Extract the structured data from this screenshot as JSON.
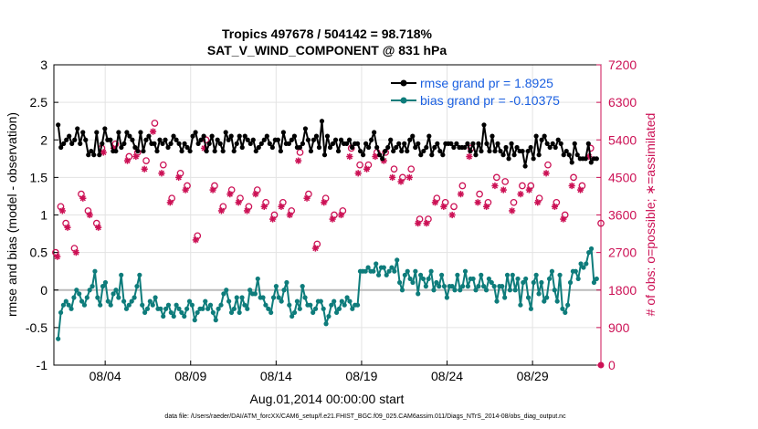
{
  "chart_data": {
    "type": "line",
    "title_line1": "Tropics 497678 / 504142 = 98.718%",
    "title_line2": "SAT_V_WIND_COMPONENT @ 831 hPa",
    "xlabel": "Aug.01,2014 00:00:00 start",
    "ylabel_left": "rmse and bias (model - observation)",
    "ylabel_right": "# of obs: o=possible; ∗=assimilated",
    "footer": "data file: /Users/raeder/DAI/ATM_forcXX/CAM6_setup/f.e21.FHIST_BGC.f09_025.CAM6assim.011/Diags_NTrS_2014-08/obs_diag_output.nc",
    "x_ticks": [
      "08/04",
      "08/09",
      "08/14",
      "08/19",
      "08/24",
      "08/29"
    ],
    "x_tick_days": [
      4,
      9,
      14,
      19,
      24,
      29
    ],
    "xlim": [
      1.0,
      33.0
    ],
    "ylim_left": [
      -1,
      3
    ],
    "y_ticks_left": [
      "-1",
      "-0.5",
      "0",
      "0.5",
      "1",
      "1.5",
      "2",
      "2.5",
      "3"
    ],
    "ylim_right": [
      0,
      7200
    ],
    "y_ticks_right": [
      "0",
      "900",
      "1800",
      "2700",
      "3600",
      "4500",
      "5400",
      "6300",
      "7200"
    ],
    "legend": {
      "position": "top-right",
      "rmse_label": "rmse grand pr = 1.8925",
      "bias_label": "bias grand pr = -0.10375"
    },
    "colors": {
      "rmse": "#000000",
      "bias": "#0e7c7b",
      "counts": "#cc1155",
      "grid": "#e3e3e3",
      "zero_line": "#bbbbbb",
      "legend_text": "#1a5fe0"
    },
    "series": {
      "rmse": [
        2.2,
        1.9,
        1.95,
        2.0,
        2.05,
        1.95,
        2.0,
        2.15,
        1.95,
        2.1,
        2.0,
        1.8,
        1.85,
        1.8,
        2.1,
        1.8,
        1.95,
        2.15,
        2.0,
        2.0,
        1.85,
        1.85,
        2.1,
        1.9,
        1.95,
        2.1,
        2.05,
        2.0,
        1.9,
        1.85,
        2.1,
        1.85,
        2.0,
        2.05,
        1.95,
        1.95,
        1.85,
        2.0,
        1.95,
        2.0,
        1.9,
        1.95,
        2.05,
        2.0,
        1.95,
        1.85,
        1.95,
        1.9,
        1.85,
        2.05,
        2.1,
        1.95,
        2.0,
        2.05,
        1.85,
        1.95,
        2.05,
        1.85,
        2.0,
        1.95,
        1.85,
        2.1,
        2.0,
        2.05,
        1.85,
        1.95,
        2.05,
        1.9,
        2.05,
        2.0,
        1.95,
        2.0,
        1.85,
        1.9,
        1.95,
        2.0,
        2.05,
        1.95,
        1.9,
        2.0,
        2.0,
        1.85,
        2.1,
        1.95,
        1.95,
        2.0,
        2.05,
        1.9,
        1.9,
        1.95,
        2.15,
        2.0,
        1.85,
        2.0,
        2.05,
        1.9,
        2.25,
        1.8,
        2.05,
        1.9,
        1.95,
        2.0,
        1.85,
        2.0,
        1.95,
        1.95,
        2.0,
        1.9,
        1.95,
        1.95,
        1.85,
        1.8,
        1.95,
        1.9,
        2.0,
        2.1,
        1.9,
        1.8,
        1.75,
        1.85,
        1.9,
        2.0,
        1.85,
        1.9,
        1.95,
        1.85,
        1.95,
        1.85,
        2.0,
        2.05,
        1.9,
        1.95,
        1.8,
        1.85,
        1.9,
        2.05,
        1.8,
        1.9,
        1.95,
        1.85,
        1.8,
        1.95,
        1.95,
        1.95,
        1.9,
        1.95,
        1.9,
        1.9,
        1.9,
        1.95,
        1.85,
        1.95,
        1.8,
        1.95,
        1.85,
        2.2,
        1.95,
        1.85,
        2.05,
        1.85,
        1.95,
        1.85,
        1.8,
        1.9,
        1.75,
        1.95,
        1.8,
        1.9,
        1.85,
        1.85,
        1.65,
        1.85,
        1.9,
        1.75,
        2.05,
        1.8,
        2.0,
        2.05,
        1.95,
        1.9,
        1.95,
        1.9,
        2.0,
        1.95,
        1.8,
        1.85,
        1.8,
        1.7,
        1.95,
        1.8,
        1.75,
        1.75,
        1.75,
        1.95,
        1.7,
        1.75,
        1.75
      ],
      "bias": [
        -0.65,
        -0.3,
        -0.2,
        -0.15,
        -0.2,
        -0.25,
        -0.1,
        0.0,
        -0.05,
        -0.15,
        -0.2,
        -0.1,
        0.0,
        0.05,
        0.25,
        -0.1,
        -0.2,
        0.05,
        0.1,
        -0.15,
        -0.2,
        -0.05,
        0.0,
        -0.1,
        0.2,
        -0.15,
        -0.25,
        -0.2,
        -0.15,
        -0.1,
        0.05,
        0.2,
        -0.2,
        -0.3,
        -0.25,
        -0.15,
        -0.2,
        -0.1,
        -0.25,
        -0.25,
        -0.35,
        -0.25,
        -0.2,
        -0.3,
        -0.35,
        -0.2,
        -0.25,
        -0.3,
        -0.35,
        -0.25,
        -0.15,
        -0.2,
        -0.4,
        -0.3,
        -0.25,
        -0.25,
        -0.15,
        -0.25,
        -0.2,
        -0.3,
        -0.4,
        -0.25,
        -0.2,
        -0.05,
        0.0,
        -0.15,
        -0.3,
        -0.25,
        -0.1,
        -0.3,
        -0.1,
        -0.2,
        -0.25,
        0.0,
        -0.05,
        -0.05,
        0.15,
        -0.1,
        -0.1,
        -0.2,
        -0.25,
        -0.3,
        -0.1,
        0.05,
        -0.1,
        -0.15,
        0.0,
        0.1,
        -0.2,
        -0.35,
        -0.3,
        -0.15,
        -0.25,
        0.05,
        -0.1,
        -0.2,
        -0.2,
        -0.3,
        -0.25,
        -0.15,
        -0.15,
        -0.25,
        -0.45,
        -0.35,
        -0.2,
        -0.15,
        -0.3,
        -0.25,
        -0.15,
        -0.2,
        -0.1,
        -0.15,
        -0.25,
        -0.2,
        -0.2,
        0.25,
        0.25,
        0.25,
        0.3,
        0.25,
        0.25,
        0.35,
        0.2,
        0.3,
        0.3,
        0.2,
        0.25,
        0.3,
        0.25,
        0.4,
        0.1,
        0.0,
        0.2,
        0.25,
        0.15,
        0.1,
        0.25,
        -0.05,
        0.2,
        0.15,
        0.05,
        0.15,
        0.25,
        0.0,
        0.1,
        0.05,
        0.2,
        0.05,
        -0.1,
        0.05,
        0.05,
        0.0,
        0.2,
        0.0,
        0.05,
        0.25,
        0.05,
        0.15,
        0.15,
        0.0,
        0.05,
        0.2,
        0.05,
        0.0,
        0.15,
        0.1,
        0.05,
        -0.15,
        0.05,
        0.05,
        -0.1,
        0.2,
        0.0,
        0.2,
        0.0,
        0.15,
        -0.2,
        0.1,
        0.15,
        -0.1,
        -0.25,
        0.1,
        0.2,
        -0.05,
        0.1,
        -0.15,
        -0.1,
        0.15,
        0.25,
        0.0,
        -0.15,
        0.2,
        -0.25,
        -0.3,
        -0.2,
        0.1,
        0.25,
        0.25,
        0.15,
        0.35,
        0.3,
        0.35,
        0.5,
        0.55,
        0.1,
        0.15
      ],
      "count_sets": [
        {
          "days": [
            1.1,
            1.4,
            1.7,
            2.2,
            2.6,
            3.0,
            3.5,
            3.8,
            4.6,
            5.4,
            5.9,
            6.4,
            6.9,
            7.4,
            7.9,
            8.4,
            8.8,
            9.4,
            9.9,
            10.4,
            10.9,
            11.4,
            11.9,
            12.4,
            12.9,
            13.4,
            13.9,
            14.4,
            14.9,
            15.4,
            15.9,
            16.4,
            16.9,
            17.4,
            17.9,
            18.4,
            18.9,
            19.4,
            19.9,
            20.4,
            20.9,
            21.4,
            21.9,
            22.4,
            22.9,
            23.4,
            23.9,
            24.4,
            24.9,
            25.4,
            25.9,
            26.4,
            26.9,
            27.4,
            27.9,
            28.4,
            28.9,
            29.4,
            29.9,
            30.4,
            30.9,
            31.4,
            31.9,
            32.4,
            33.0
          ],
          "values": [
            2700,
            3800,
            3400,
            2800,
            4100,
            3700,
            3400,
            5200,
            5300,
            5000,
            5100,
            4900,
            5800,
            4800,
            4000,
            4600,
            4300,
            3100,
            5400,
            4300,
            3800,
            4200,
            4000,
            3800,
            4200,
            3900,
            3600,
            3900,
            3700,
            5100,
            4100,
            2900,
            4000,
            3600,
            3700,
            5200,
            4800,
            4800,
            5100,
            5100,
            4700,
            4500,
            4700,
            3500,
            3500,
            4000,
            3900,
            3800,
            4300,
            5200,
            4100,
            3900,
            4500,
            4400,
            3900,
            4300,
            4300,
            4000,
            4800,
            3900,
            3600,
            4500,
            4300,
            5200,
            3400
          ],
          "marker": "o"
        },
        {
          "days": [
            1.2,
            1.5,
            1.8,
            2.3,
            2.7,
            3.1,
            3.6,
            3.9,
            4.5,
            5.3,
            5.8,
            6.3,
            6.8,
            7.3,
            7.8,
            8.3,
            8.7,
            9.3,
            9.8,
            10.3,
            10.8,
            11.3,
            11.8,
            12.3,
            12.8,
            13.3,
            13.8,
            14.3,
            14.8,
            15.3,
            15.8,
            16.3,
            16.8,
            17.3,
            17.8,
            18.3,
            18.8,
            19.3,
            19.8,
            20.3,
            20.8,
            21.3,
            21.8,
            22.3,
            22.8,
            23.3,
            23.8,
            24.3,
            24.8,
            25.3,
            25.8,
            26.3,
            26.8,
            27.3,
            27.8,
            28.3,
            28.8,
            29.3,
            29.8,
            30.3,
            30.8,
            31.3,
            31.8,
            32.3
          ],
          "values": [
            2600,
            3700,
            3300,
            2700,
            4000,
            3600,
            3300,
            5100,
            5200,
            4900,
            5000,
            4700,
            5600,
            4600,
            3900,
            4500,
            4200,
            3000,
            5200,
            4200,
            3700,
            4100,
            3900,
            3700,
            4100,
            3800,
            3500,
            3800,
            3600,
            4900,
            4000,
            2800,
            3900,
            3500,
            3600,
            5000,
            4600,
            4700,
            5000,
            4900,
            4500,
            4400,
            4500,
            3400,
            3400,
            3900,
            3800,
            3600,
            4100,
            5000,
            3900,
            3800,
            4300,
            4200,
            3700,
            4100,
            4200,
            3900,
            4600,
            3800,
            3500,
            4300,
            4200,
            5000
          ],
          "marker": "*"
        }
      ]
    }
  }
}
